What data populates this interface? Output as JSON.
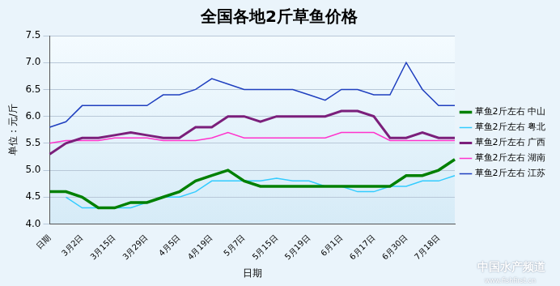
{
  "chart_data": {
    "type": "line",
    "title": "全国各地2斤草鱼价格",
    "x_label": "日期",
    "y_label": "单位：元/斤",
    "annotations": [
      "中国水产频道",
      "www.fishfirst.cn"
    ],
    "categories": [
      "日期",
      null,
      "3月2日",
      null,
      "3月15日",
      null,
      "3月29日",
      null,
      "4月5日",
      null,
      "4月19日",
      null,
      "5月7日",
      null,
      "5月15日",
      null,
      "5月19日",
      null,
      "6月1日",
      null,
      "6月17日",
      null,
      "6月30日",
      null,
      "7月18日",
      null
    ],
    "series": [
      {
        "name": "草鱼2斤左右 中山",
        "color": "#008000",
        "values": [
          4.6,
          4.6,
          4.5,
          4.3,
          4.3,
          4.4,
          4.4,
          4.5,
          4.6,
          4.8,
          4.9,
          5.0,
          4.8,
          4.7,
          4.7,
          4.7,
          4.7,
          4.7,
          4.7,
          4.7,
          4.7,
          4.7,
          4.9,
          4.9,
          5.0,
          5.2
        ]
      },
      {
        "name": "草鱼2斤左右 粤北",
        "color": "#33ccff",
        "values": [
          null,
          4.5,
          4.3,
          4.3,
          4.3,
          4.3,
          4.4,
          4.5,
          4.5,
          4.6,
          4.8,
          4.8,
          4.8,
          4.8,
          4.85,
          4.8,
          4.8,
          4.7,
          4.7,
          4.6,
          4.6,
          4.7,
          4.7,
          4.8,
          4.8,
          4.9
        ]
      },
      {
        "name": "草鱼2斤左右 广西",
        "color": "#7b1f7b",
        "values": [
          5.3,
          5.5,
          5.6,
          5.6,
          5.65,
          5.7,
          5.65,
          5.6,
          5.6,
          5.8,
          5.8,
          6.0,
          6.0,
          5.9,
          6.0,
          6.0,
          6.0,
          6.0,
          6.1,
          6.1,
          6.0,
          5.6,
          5.6,
          5.7,
          5.6,
          5.6
        ]
      },
      {
        "name": "草鱼2斤左右 湖南",
        "color": "#ff33cc",
        "values": [
          5.5,
          5.55,
          5.55,
          5.55,
          5.6,
          5.6,
          5.6,
          5.55,
          5.55,
          5.55,
          5.6,
          5.7,
          5.6,
          5.6,
          5.6,
          5.6,
          5.6,
          5.6,
          5.7,
          5.7,
          5.7,
          5.55,
          5.55,
          5.55,
          5.55,
          5.55
        ]
      },
      {
        "name": "草鱼2斤左右 江苏",
        "color": "#1f3fbf",
        "values": [
          5.8,
          5.9,
          6.2,
          6.2,
          6.2,
          6.2,
          6.2,
          6.4,
          6.4,
          6.5,
          6.7,
          6.6,
          6.5,
          6.5,
          6.5,
          6.5,
          6.4,
          6.3,
          6.5,
          6.5,
          6.4,
          6.4,
          7.0,
          6.5,
          6.2,
          6.2
        ]
      }
    ],
    "ylim": [
      4,
      7.5
    ],
    "yticks": [
      {
        "value": 4,
        "label": "4.0"
      },
      4.5,
      {
        "value": 5,
        "label": "5.0"
      },
      5.5,
      {
        "value": 6,
        "label": "6.0"
      },
      6.5,
      {
        "value": 7,
        "label": "7.0"
      },
      7.5
    ],
    "grid": true,
    "legend": "right",
    "marker": "none"
  }
}
